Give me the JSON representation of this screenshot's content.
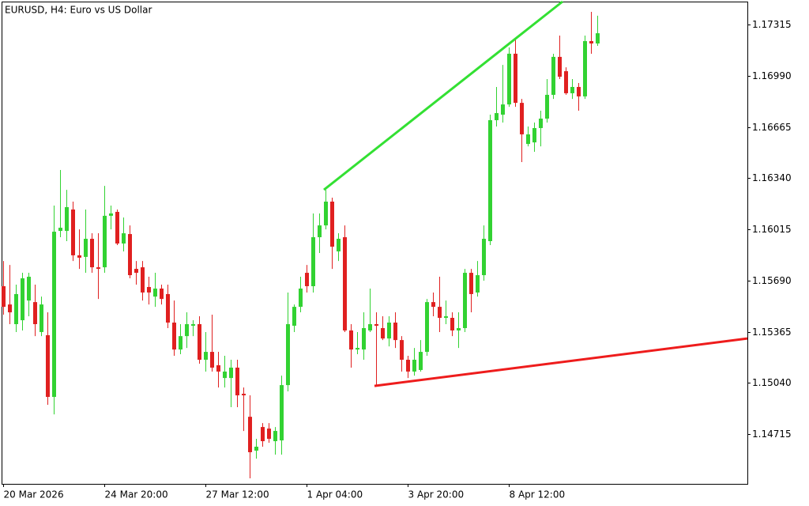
{
  "chart_data": {
    "type": "candlestick",
    "title": "EURUSD, H4:  Euro vs US Dollar",
    "categories": [
      "20 Mar 2026",
      null,
      null,
      null,
      null,
      null,
      null,
      null,
      null,
      null,
      null,
      null,
      null,
      null,
      null,
      null,
      "24 Mar 20:00",
      null,
      null,
      null,
      null,
      null,
      null,
      null,
      null,
      null,
      null,
      null,
      null,
      null,
      null,
      null,
      "27 Mar 12:00",
      null,
      null,
      null,
      null,
      null,
      null,
      null,
      null,
      null,
      null,
      null,
      null,
      null,
      null,
      null,
      "1 Apr 04:00",
      null,
      null,
      null,
      null,
      null,
      null,
      null,
      null,
      null,
      null,
      null,
      null,
      null,
      null,
      null,
      "3 Apr 20:00",
      null,
      null,
      null,
      null,
      null,
      null,
      null,
      null,
      null,
      null,
      null,
      null,
      null,
      null,
      null,
      "8 Apr 12:00",
      null,
      null,
      null,
      null,
      null,
      null,
      null,
      null,
      null,
      null,
      null,
      null,
      null,
      null
    ],
    "open": [
      1.15654,
      1.15538,
      1.15413,
      1.15438,
      1.15563,
      1.15553,
      1.15363,
      1.15343,
      1.14951,
      1.16005,
      1.16005,
      1.16141,
      1.1585,
      1.1584,
      1.15955,
      1.15774,
      1.15774,
      1.16101,
      1.16126,
      1.15925,
      1.15985,
      1.15764,
      1.15774,
      1.15649,
      1.15588,
      1.15639,
      1.15604,
      1.15423,
      1.15252,
      1.15337,
      1.15403,
      1.15413,
      1.15187,
      1.15237,
      1.15152,
      1.15071,
      1.15071,
      1.15137,
      1.14971,
      1.14825,
      1.1461,
      1.1476,
      1.1475,
      1.1467,
      1.14675,
      1.15026,
      1.15403,
      1.15523,
      1.15739,
      1.15654,
      1.15965,
      1.1604,
      1.16191,
      1.15875,
      1.15965,
      1.15373,
      1.15252,
      1.15252,
      1.15373,
      1.15413,
      1.15388,
      1.15322,
      1.15423,
      1.15312,
      1.15187,
      1.15112,
      1.15122,
      1.15237,
      1.15553,
      1.15523,
      1.15453,
      1.15453,
      1.15373,
      1.15388,
      1.15739,
      1.15614,
      1.15724,
      1.1594,
      1.16708,
      1.16743,
      1.16808,
      1.1713,
      1.16818,
      1.16557,
      1.16567,
      1.16658,
      1.16718,
      1.16869,
      1.1711,
      1.17019,
      1.16879,
      1.16919,
      1.16859,
      1.1721,
      1.17195
    ],
    "high": [
      1.15814,
      1.15789,
      1.15664,
      1.15739,
      1.15739,
      1.15664,
      1.15588,
      1.15488,
      1.16166,
      1.16392,
      1.16266,
      1.16191,
      1.16015,
      1.16141,
      1.1599,
      1.1599,
      1.16291,
      1.16166,
      1.16141,
      1.1609,
      1.1604,
      1.15814,
      1.15814,
      1.15714,
      1.15739,
      1.15664,
      1.15664,
      1.15563,
      1.15413,
      1.15488,
      1.15438,
      1.15463,
      1.15363,
      1.15473,
      1.15237,
      1.15212,
      1.15187,
      1.15187,
      1.15011,
      1.14961,
      1.14685,
      1.14785,
      1.14785,
      1.1476,
      1.15086,
      1.15614,
      1.15538,
      1.15714,
      1.15789,
      1.16116,
      1.16116,
      1.16266,
      1.16216,
      1.1599,
      1.1604,
      1.15413,
      1.15363,
      1.15488,
      1.15639,
      1.15488,
      1.15463,
      1.15463,
      1.15488,
      1.15337,
      1.15212,
      1.15262,
      1.15312,
      1.15573,
      1.15614,
      1.15714,
      1.15563,
      1.15488,
      1.15488,
      1.15764,
      1.15764,
      1.15814,
      1.1604,
      1.16743,
      1.16919,
      1.17059,
      1.1717,
      1.1722,
      1.16843,
      1.16668,
      1.16693,
      1.16768,
      1.16969,
      1.1713,
      1.17245,
      1.17044,
      1.16969,
      1.16944,
      1.17245,
      1.17396,
      1.17371
    ],
    "low": [
      1.15473,
      1.15413,
      1.15363,
      1.15373,
      1.15463,
      1.15337,
      1.15337,
      1.14901,
      1.1484,
      1.15965,
      1.1594,
      1.15814,
      1.15764,
      1.15739,
      1.15739,
      1.15573,
      1.15739,
      1.16015,
      1.15915,
      1.15875,
      1.15704,
      1.15664,
      1.15563,
      1.15538,
      1.15523,
      1.15538,
      1.15388,
      1.15212,
      1.15222,
      1.15262,
      1.15337,
      1.15162,
      1.15112,
      1.15112,
      1.15011,
      1.15011,
      1.14886,
      1.14886,
      1.14735,
      1.14434,
      1.14559,
      1.14635,
      1.1466,
      1.14585,
      1.14585,
      1.14986,
      1.15363,
      1.15488,
      1.15614,
      1.15614,
      1.15865,
      1.16015,
      1.15764,
      1.15814,
      1.15363,
      1.15137,
      1.15222,
      1.15187,
      1.15363,
      1.15026,
      1.15312,
      1.15272,
      1.15262,
      1.15112,
      1.15071,
      1.15086,
      1.15112,
      1.15212,
      1.15463,
      1.15363,
      1.15413,
      1.15337,
      1.15262,
      1.15363,
      1.15488,
      1.15588,
      1.15689,
      1.15915,
      1.16668,
      1.16693,
      1.16793,
      1.16793,
      1.16442,
      1.16542,
      1.16507,
      1.16542,
      1.16693,
      1.16843,
      1.16969,
      1.16869,
      1.16843,
      1.16768,
      1.16843,
      1.1713,
      1.1718
    ],
    "close": [
      1.15523,
      1.15488,
      1.15604,
      1.15704,
      1.15714,
      1.15413,
      1.15538,
      1.14951,
      1.16,
      1.16025,
      1.16156,
      1.1585,
      1.15835,
      1.15955,
      1.15774,
      1.15764,
      1.16101,
      1.16116,
      1.15925,
      1.1599,
      1.15724,
      1.15739,
      1.15614,
      1.15614,
      1.15639,
      1.15573,
      1.15423,
      1.15252,
      1.15337,
      1.15413,
      1.15413,
      1.15187,
      1.15237,
      1.15137,
      1.15112,
      1.15112,
      1.15137,
      1.14961,
      1.14961,
      1.146,
      1.14635,
      1.1467,
      1.14685,
      1.14735,
      1.15026,
      1.15413,
      1.15523,
      1.15639,
      1.15654,
      1.15965,
      1.1604,
      1.16191,
      1.15905,
      1.15955,
      1.15373,
      1.15252,
      1.15262,
      1.15388,
      1.15413,
      1.15403,
      1.15322,
      1.15423,
      1.15312,
      1.15187,
      1.15112,
      1.15187,
      1.15237,
      1.15553,
      1.15523,
      1.15453,
      1.15463,
      1.15373,
      1.15388,
      1.15739,
      1.15604,
      1.15724,
      1.15955,
      1.16708,
      1.16753,
      1.16808,
      1.1713,
      1.16818,
      1.16618,
      1.16618,
      1.16658,
      1.16718,
      1.16869,
      1.1711,
      1.16984,
      1.16879,
      1.16919,
      1.16859,
      1.1721,
      1.17195,
      1.1726
    ],
    "up_color": "#32d232",
    "down_color": "#e02020",
    "trendlines": [
      {
        "color": "#33e033",
        "y": [
          1.16266,
          1.17461
        ]
      },
      {
        "color": "#ee1c1c",
        "y": [
          1.15021,
          1.15322
        ]
      }
    ],
    "ylim": [
      1.14399,
      1.17461
    ],
    "yticks": [
      1.14715,
      {
        "value": 1.1504,
        "label": "1.15040"
      },
      1.15365,
      {
        "value": 1.1569,
        "label": "1.15690"
      },
      1.16015,
      {
        "value": 1.1634,
        "label": "1.16340"
      },
      1.16665,
      {
        "value": 1.1699,
        "label": "1.16990"
      },
      1.17315
    ]
  }
}
